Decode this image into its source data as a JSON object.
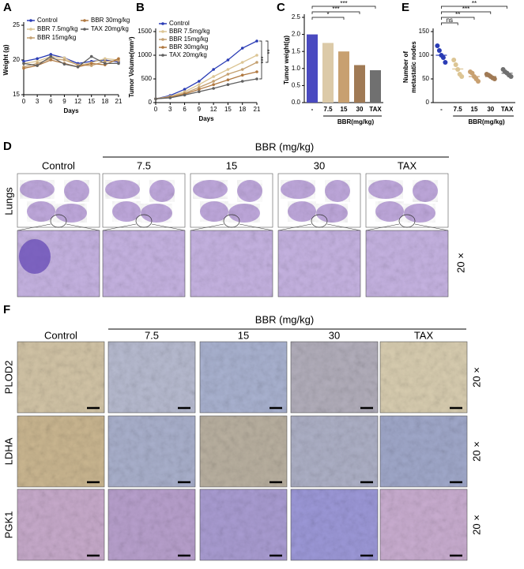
{
  "chart_data": [
    {
      "type": "line",
      "panel": "A",
      "ylabel": "Weight (g)",
      "xlabel": "Days",
      "x": [
        0,
        3,
        6,
        9,
        12,
        15,
        18,
        21
      ],
      "xlim": [
        0,
        21
      ],
      "xticks": [
        0,
        3,
        6,
        9,
        12,
        15,
        18,
        21
      ],
      "ylim": [
        15,
        25
      ],
      "yticks": [
        15,
        20,
        25
      ],
      "series": [
        {
          "name": "Control",
          "color": "#2a3cb5",
          "values": [
            19.8,
            20.2,
            20.8,
            20.3,
            19.5,
            19.8,
            20.0,
            19.7
          ]
        },
        {
          "name": "BBR 7.5mg/kg",
          "color": "#dcc594",
          "values": [
            19.5,
            19.8,
            20.5,
            20.3,
            19.2,
            19.6,
            20.2,
            20.0
          ]
        },
        {
          "name": "BBR 15mg/kg",
          "color": "#c4a070",
          "values": [
            19.0,
            19.5,
            20.2,
            20.0,
            19.3,
            19.2,
            19.8,
            19.9
          ]
        },
        {
          "name": "BBR 30mg/kg",
          "color": "#b07840",
          "values": [
            18.8,
            19.2,
            20.0,
            19.5,
            19.0,
            19.5,
            19.3,
            20.2
          ]
        },
        {
          "name": "TAX 20mg/kg",
          "color": "#606060",
          "values": [
            19.5,
            19.2,
            20.5,
            19.4,
            19.0,
            20.5,
            19.5,
            19.5
          ]
        }
      ]
    },
    {
      "type": "line",
      "panel": "B",
      "ylabel": "Tumor Volume(mm³)",
      "xlabel": "Days",
      "x": [
        0,
        3,
        6,
        9,
        12,
        15,
        18,
        21
      ],
      "xlim": [
        0,
        21
      ],
      "xticks": [
        0,
        3,
        6,
        9,
        12,
        15,
        18,
        21
      ],
      "ylim": [
        0,
        1500
      ],
      "yticks": [
        0,
        500,
        1000,
        1500
      ],
      "annotations": [
        "***",
        "**"
      ],
      "series": [
        {
          "name": "Control",
          "color": "#2a3cb5",
          "values": [
            80,
            150,
            280,
            450,
            700,
            900,
            1150,
            1300
          ]
        },
        {
          "name": "BBR 7.5mg/kg",
          "color": "#dcc594",
          "values": [
            80,
            130,
            230,
            380,
            550,
            700,
            850,
            1000
          ]
        },
        {
          "name": "BBR 15mg/kg",
          "color": "#c4a070",
          "values": [
            80,
            120,
            200,
            320,
            450,
            600,
            700,
            850
          ]
        },
        {
          "name": "BBR 30mg/kg",
          "color": "#b07840",
          "values": [
            80,
            110,
            180,
            280,
            380,
            480,
            580,
            650
          ]
        },
        {
          "name": "TAX 20mg/kg",
          "color": "#606060",
          "values": [
            80,
            100,
            160,
            230,
            300,
            380,
            450,
            500
          ]
        }
      ]
    },
    {
      "type": "bar",
      "panel": "C",
      "ylabel": "Tumor weight(g)",
      "xlabel": "BBR(mg/kg)",
      "categories": [
        "-",
        "7.5",
        "15",
        "30",
        "TAX"
      ],
      "values": [
        2.0,
        1.75,
        1.5,
        1.1,
        0.95
      ],
      "colors": [
        "#4a4ac0",
        "#dccaa8",
        "#c8a070",
        "#a07a55",
        "#707070"
      ],
      "ylim": [
        0,
        2.5
      ],
      "yticks": [
        {
          "value": 0,
          "label": "0.0"
        },
        0.5,
        {
          "value": 1,
          "label": "1.0"
        },
        1.5,
        {
          "value": 2,
          "label": "2.0"
        },
        2.5
      ],
      "annotations": [
        "*",
        "***",
        "***"
      ]
    },
    {
      "type": "strip",
      "panel": "E",
      "ylabel": [
        "Number of",
        "metastatic nodes"
      ],
      "xlabel": "BBR(mg/kg)",
      "categories": [
        "-",
        "7.5",
        "15",
        "30",
        "TAX"
      ],
      "values": [
        100,
        71,
        55,
        55,
        62
      ],
      "points": [
        [
          120,
          110,
          100,
          95,
          85
        ],
        [
          90,
          80,
          70,
          60,
          55
        ],
        [
          65,
          62,
          55,
          50,
          45
        ],
        [
          60,
          58,
          55,
          52,
          50
        ],
        [
          70,
          65,
          62,
          58,
          55
        ]
      ],
      "colors": [
        "#2a3cb5",
        "#dcc594",
        "#c8a070",
        "#a07a55",
        "#707070"
      ],
      "ylim": [
        0,
        150
      ],
      "yticks": [
        0,
        50,
        100,
        150
      ],
      "annotations": [
        "ns",
        "**",
        "***",
        "**"
      ]
    }
  ],
  "panel_d": {
    "panel": "D",
    "group_label": "BBR (mg/kg)",
    "columns": [
      "Control",
      "7.5",
      "15",
      "30",
      "TAX"
    ],
    "row_label": "Lungs",
    "magnification": "20 ×"
  },
  "panel_f": {
    "panel": "F",
    "group_label": "BBR (mg/kg)",
    "columns": [
      "Control",
      "7.5",
      "15",
      "30",
      "TAX"
    ],
    "rows": [
      "PLOD2",
      "LDHA",
      "PGK1"
    ],
    "magnification": "20 ×"
  }
}
